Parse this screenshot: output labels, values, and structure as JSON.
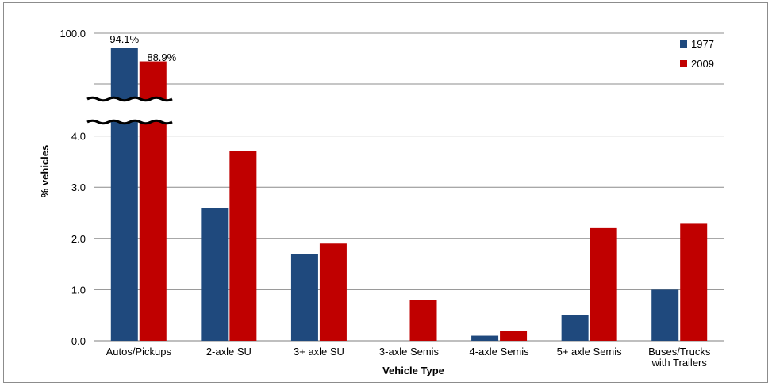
{
  "chart_data": {
    "type": "bar",
    "categories": [
      [
        "Autos/Pickups"
      ],
      [
        "2-axle SU"
      ],
      [
        "3+ axle SU"
      ],
      [
        "3-axle Semis"
      ],
      [
        "4-axle Semis"
      ],
      [
        "5+ axle Semis"
      ],
      [
        "Buses/Trucks",
        "with Trailers"
      ]
    ],
    "series": [
      {
        "name": "1977",
        "color": "#1f497d",
        "values": [
          94.1,
          2.6,
          1.7,
          0.0,
          0.1,
          0.5,
          1.0
        ]
      },
      {
        "name": "2009",
        "color": "#c00000",
        "values": [
          88.9,
          3.7,
          1.9,
          0.8,
          0.2,
          2.2,
          2.3
        ]
      }
    ],
    "data_labels": [
      "94.1%",
      "88.9%"
    ],
    "xlabel": "Vehicle Type",
    "ylabel": "% vehicles",
    "yticks": [
      "0.0",
      "1.0",
      "2.0",
      "3.0",
      "4.0",
      "100.0"
    ],
    "ylim": [
      0,
      4.6
    ],
    "axis_break": true,
    "grid": true,
    "legend_position": "top-right"
  }
}
